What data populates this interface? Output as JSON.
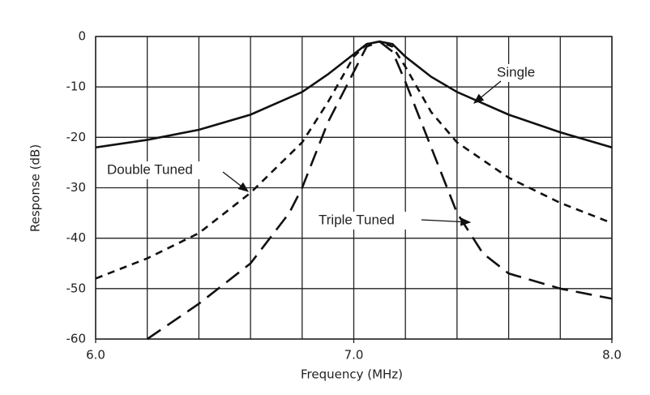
{
  "chart_data": {
    "type": "line",
    "x_label": "Frequency (MHz)",
    "y_label": "Response (dB)",
    "xlim": [
      6.0,
      8.0
    ],
    "ylim": [
      -60,
      0
    ],
    "xticks": [
      {
        "value": 6.0,
        "label": "6.0"
      },
      {
        "value": 7.0,
        "label": "7.0"
      },
      {
        "value": 8.0,
        "label": "8.0"
      }
    ],
    "xgrid": [
      6.0,
      6.2,
      6.4,
      6.6,
      6.8,
      7.0,
      7.2,
      7.4,
      7.6,
      7.8,
      8.0
    ],
    "yticks": [
      0,
      -10,
      -20,
      -30,
      -40,
      -50,
      -60
    ],
    "grid": true,
    "series": [
      {
        "name": "Single",
        "color": "#111111",
        "dash": "none",
        "x": [
          6.0,
          6.2,
          6.4,
          6.6,
          6.8,
          6.9,
          7.0,
          7.05,
          7.1,
          7.15,
          7.2,
          7.3,
          7.4,
          7.6,
          7.8,
          8.0
        ],
        "values": [
          -22,
          -20.5,
          -18.5,
          -15.5,
          -11,
          -7.5,
          -3.5,
          -1.5,
          -1,
          -1.5,
          -4,
          -8,
          -11,
          -15.5,
          -19,
          -22
        ]
      },
      {
        "name": "Double Tuned",
        "color": "#111111",
        "dash": "9,7",
        "x": [
          6.0,
          6.2,
          6.4,
          6.6,
          6.8,
          6.9,
          7.0,
          7.05,
          7.1,
          7.15,
          7.2,
          7.3,
          7.4,
          7.6,
          7.8,
          8.0
        ],
        "values": [
          -48,
          -44,
          -39,
          -31,
          -21,
          -13,
          -4,
          -1.5,
          -1,
          -2,
          -6,
          -15,
          -21,
          -28,
          -33,
          -37
        ]
      },
      {
        "name": "Triple Tuned",
        "color": "#111111",
        "dash": "20,10",
        "x": [
          6.2,
          6.4,
          6.6,
          6.75,
          6.8,
          6.9,
          7.0,
          7.05,
          7.1,
          7.15,
          7.2,
          7.3,
          7.4,
          7.5,
          7.6,
          7.8,
          8.0
        ],
        "values": [
          -60,
          -53,
          -45,
          -35,
          -30,
          -17,
          -7,
          -2,
          -1,
          -3,
          -9,
          -22,
          -35,
          -43,
          -47,
          -50,
          -52
        ]
      }
    ]
  }
}
